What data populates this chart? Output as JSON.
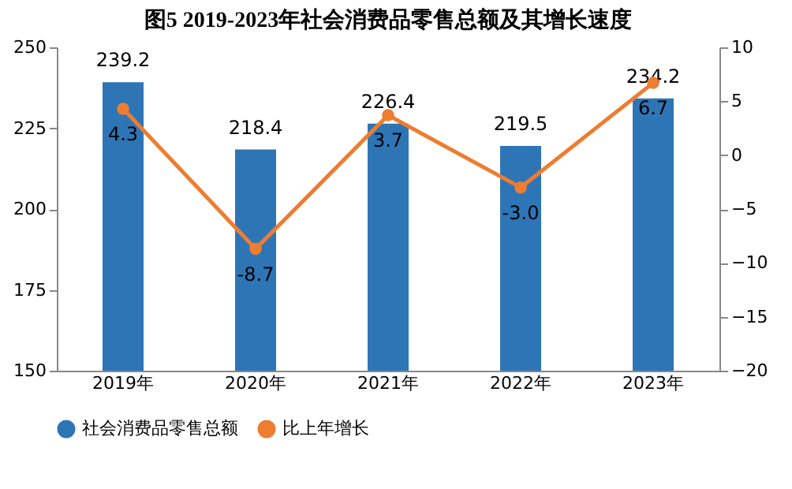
{
  "chart_data": {
    "type": "bar",
    "title": "图5    2019-2023年社会消费品零售总额及其增长速度",
    "categories": [
      "2019年",
      "2020年",
      "2021年",
      "2022年",
      "2023年"
    ],
    "series": [
      {
        "name": "社会消费品零售总额",
        "color": "#2e75b6",
        "values": [
          239.2,
          218.4,
          226.4,
          219.5,
          234.2
        ],
        "value_labels": [
          "239.2",
          "218.4",
          "226.4",
          "219.5",
          "234.2"
        ]
      },
      {
        "name": "比上年增长",
        "type": "line",
        "axis": "y2",
        "color": "#ed7d31",
        "values": [
          4.3,
          -8.7,
          3.7,
          -3.0,
          6.7
        ],
        "value_labels": [
          "4.3",
          "-8.7",
          "3.7",
          "-3.0",
          "6.7"
        ]
      }
    ],
    "ylim": [
      150,
      250
    ],
    "yticks": [
      150,
      175,
      200,
      225,
      250
    ],
    "y2lim": [
      -20,
      10
    ],
    "y2ticks": [
      -20,
      -15,
      -10,
      -5,
      0,
      5,
      10
    ],
    "grid": false,
    "legend": "bottom",
    "marker": "circle",
    "line_style": "solid"
  }
}
